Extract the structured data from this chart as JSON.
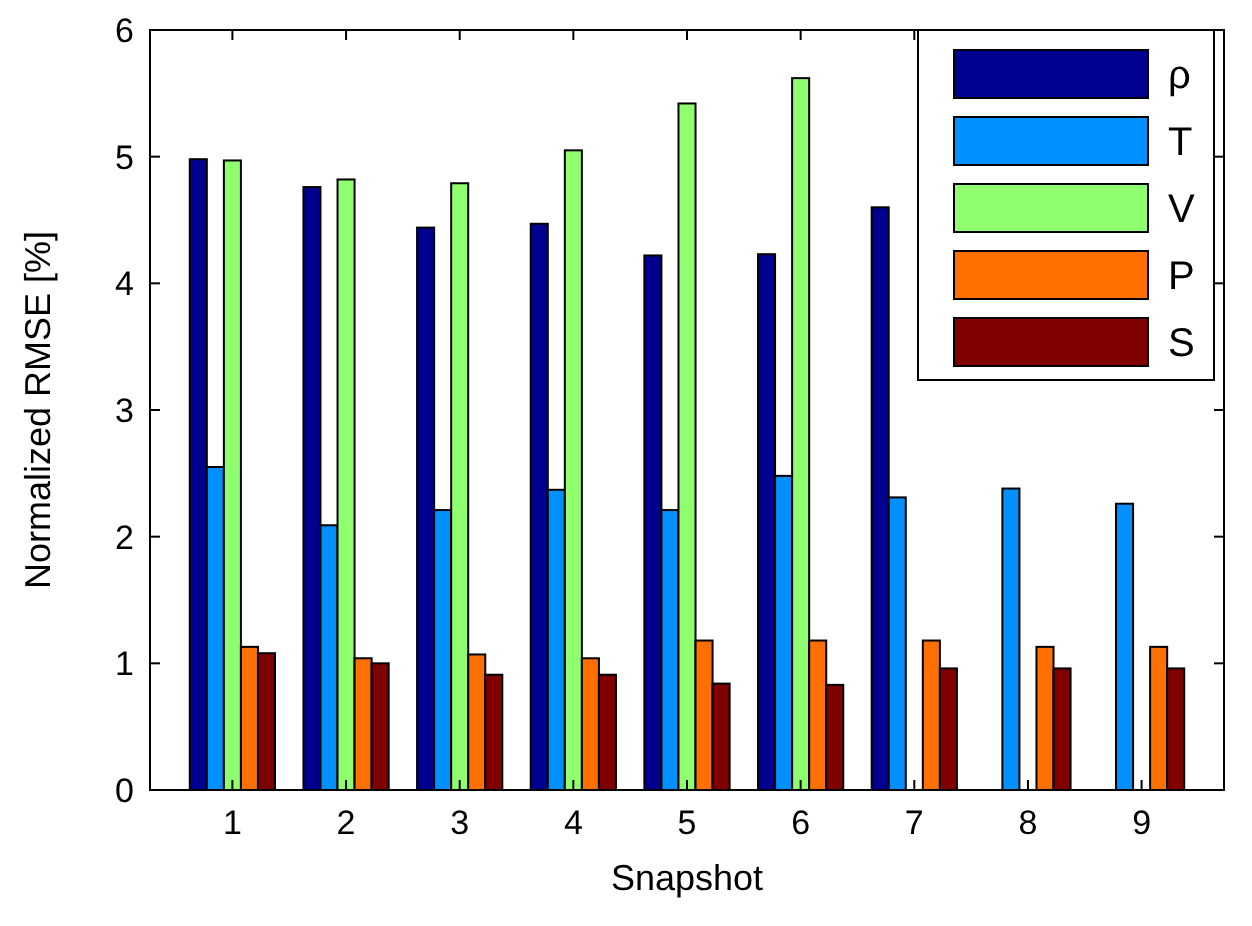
{
  "chart_data": {
    "type": "bar",
    "xlabel": "Snapshot",
    "ylabel": "Normalized RMSE [%]",
    "categories": [
      "1",
      "2",
      "3",
      "4",
      "5",
      "6",
      "7",
      "8",
      "9"
    ],
    "series": [
      {
        "name": "ρ",
        "color": "#000090",
        "values": [
          4.98,
          4.76,
          4.44,
          4.47,
          4.22,
          4.23,
          4.6,
          null,
          null
        ]
      },
      {
        "name": "T",
        "color": "#0090ff",
        "values": [
          2.55,
          2.09,
          2.21,
          2.37,
          2.21,
          2.48,
          2.31,
          2.38,
          2.26
        ]
      },
      {
        "name": "V",
        "color": "#8fff70",
        "values": [
          4.97,
          4.82,
          4.79,
          5.05,
          5.42,
          5.62,
          null,
          null,
          null
        ]
      },
      {
        "name": "P",
        "color": "#ff7000",
        "values": [
          1.13,
          1.04,
          1.07,
          1.04,
          1.18,
          1.18,
          1.18,
          1.13,
          1.13
        ]
      },
      {
        "name": "S",
        "color": "#800000",
        "values": [
          1.08,
          1.0,
          0.91,
          0.91,
          0.84,
          0.83,
          0.96,
          0.96,
          0.96
        ]
      }
    ],
    "ylim": [
      0,
      6
    ],
    "yticks": [
      0,
      1,
      2,
      3,
      4,
      5,
      6
    ],
    "grid": false,
    "legend": "top right"
  }
}
